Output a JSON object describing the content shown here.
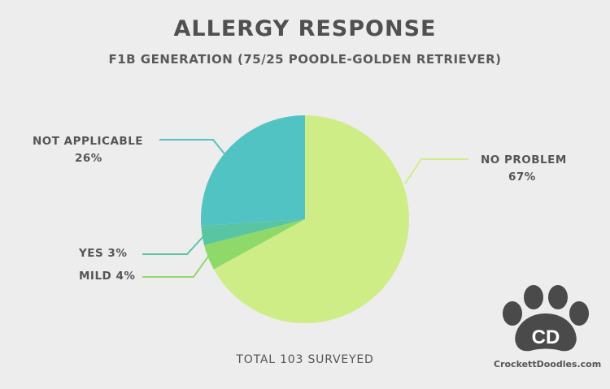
{
  "chart_data": {
    "type": "pie",
    "title": "ALLERGY RESPONSE",
    "subtitle": "F1B GENERATION (75/25 POODLE-GOLDEN RETRIEVER)",
    "slices": [
      {
        "label": "NO PROBLEM",
        "value": 67,
        "value_label": "67%",
        "color": "#cfed87"
      },
      {
        "label": "MILD",
        "value": 4,
        "value_label": "4%",
        "color": "#8fd86a"
      },
      {
        "label": "YES",
        "value": 3,
        "value_label": "3%",
        "color": "#59c5a3"
      },
      {
        "label": "NOT APPLICABLE",
        "value": 26,
        "value_label": "26%",
        "color": "#52c3c3"
      }
    ],
    "start": "12 o'clock, clockwise",
    "footer": "TOTAL 103 SURVEYED"
  },
  "branding": {
    "logo_letters": "CD",
    "logo_text": "CrockettDoodles.com",
    "icon": "paw-icon",
    "icon_color": "#4a4a4a"
  },
  "labels": {
    "no_problem_name": "NO PROBLEM",
    "no_problem_pct": "67%",
    "not_applicable_name": "NOT APPLICABLE",
    "not_applicable_pct": "26%",
    "yes": "YES 3%",
    "mild": "MILD 4%"
  }
}
